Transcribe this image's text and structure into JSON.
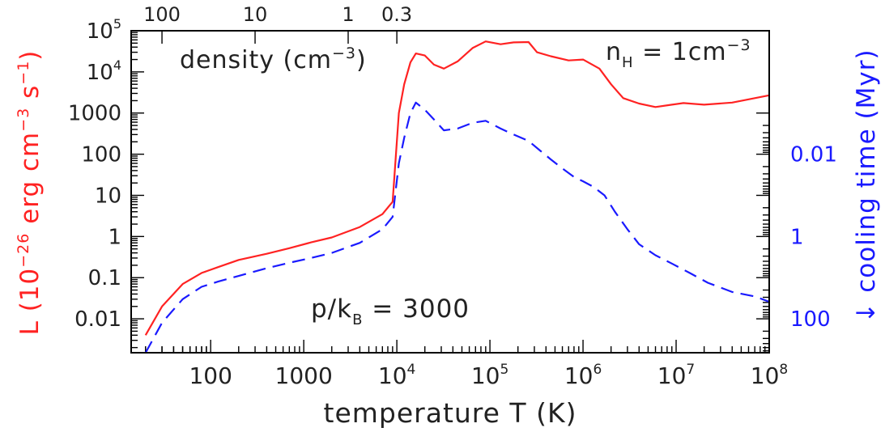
{
  "chart_data": {
    "type": "line",
    "title": "",
    "xlabel": "temperature T (K)",
    "xscale": "log",
    "xlim": [
      14,
      100000000
    ],
    "x_tick_labels": [
      {
        "value": 100,
        "label": "100"
      },
      {
        "value": 1000,
        "label": "1000"
      },
      {
        "value": 10000,
        "label": "10",
        "sup": "4"
      },
      {
        "value": 100000,
        "label": "10",
        "sup": "5"
      },
      {
        "value": 1000000,
        "label": "10",
        "sup": "6"
      },
      {
        "value": 10000000,
        "label": "10",
        "sup": "7"
      },
      {
        "value": 100000000,
        "label": "10",
        "sup": "8"
      }
    ],
    "top_axis": {
      "label": "density (cm",
      "label_sup": "−3",
      "label_end": ")",
      "tick_labels": [
        {
          "temperature": 30,
          "label": "100"
        },
        {
          "temperature": 300,
          "label": "10"
        },
        {
          "temperature": 3000,
          "label": "1"
        },
        {
          "temperature": 10000,
          "label": "0.3"
        }
      ]
    },
    "ylabel_left": {
      "prefix": "L (10",
      "sup1": "−26",
      "middle": " erg cm",
      "sup2": "−3",
      "middle2": " s",
      "sup3": "−1",
      "suffix": ")"
    },
    "yscale_left": "log",
    "ylim_left": [
      0.0015,
      100000
    ],
    "y_tick_labels_left": [
      {
        "value": 100000,
        "label": "10",
        "sup": "5"
      },
      {
        "value": 10000,
        "label": "10",
        "sup": "4"
      },
      {
        "value": 1000,
        "label": "1000"
      },
      {
        "value": 100,
        "label": "100"
      },
      {
        "value": 10,
        "label": "10"
      },
      {
        "value": 1,
        "label": "1"
      },
      {
        "value": 0.1,
        "label": "0.1"
      },
      {
        "value": 0.01,
        "label": "0.01"
      }
    ],
    "ylabel_right": "↓ cooling time (Myr)",
    "yscale_right": "log (inverted)",
    "y_tick_labels_right": [
      {
        "value": 0.01,
        "label": "0.01"
      },
      {
        "value": 1,
        "label": "1"
      },
      {
        "value": 100,
        "label": "100"
      }
    ],
    "annotations": {
      "nH": {
        "text": "n",
        "sub": "H",
        "rest": " = 1cm",
        "sup": "−3"
      },
      "pk": {
        "text": "p/k",
        "sub": "B",
        "rest": " = 3000"
      }
    },
    "series": [
      {
        "axis": "left",
        "color": "#ff2222",
        "style": "solid",
        "points": [
          [
            20,
            0.004
          ],
          [
            30,
            0.02
          ],
          [
            50,
            0.07
          ],
          [
            80,
            0.13
          ],
          [
            120,
            0.18
          ],
          [
            200,
            0.27
          ],
          [
            400,
            0.38
          ],
          [
            700,
            0.52
          ],
          [
            1200,
            0.72
          ],
          [
            2000,
            0.95
          ],
          [
            4000,
            1.7
          ],
          [
            7000,
            3.5
          ],
          [
            9000,
            7
          ],
          [
            10500,
            1000
          ],
          [
            12000,
            5000
          ],
          [
            14000,
            17000
          ],
          [
            16000,
            28000
          ],
          [
            20000,
            25000
          ],
          [
            25000,
            15000
          ],
          [
            32000,
            12000
          ],
          [
            45000,
            18000
          ],
          [
            65000,
            38000
          ],
          [
            90000,
            55000
          ],
          [
            130000,
            47000
          ],
          [
            180000,
            52000
          ],
          [
            260000,
            53000
          ],
          [
            320000,
            30000
          ],
          [
            450000,
            24000
          ],
          [
            700000,
            19000
          ],
          [
            1000000,
            20000
          ],
          [
            1500000,
            12000
          ],
          [
            2000000,
            5000
          ],
          [
            2700000,
            2300
          ],
          [
            4000000,
            1700
          ],
          [
            6000000,
            1400
          ],
          [
            9000000,
            1600
          ],
          [
            12000000,
            1750
          ],
          [
            20000000,
            1600
          ],
          [
            40000000,
            1800
          ],
          [
            70000000,
            2300
          ],
          [
            100000000,
            2700
          ]
        ]
      },
      {
        "axis": "left",
        "color": "#1a1aff",
        "style": "dashed",
        "points": [
          [
            20,
            0.0015
          ],
          [
            30,
            0.008
          ],
          [
            50,
            0.03
          ],
          [
            80,
            0.06
          ],
          [
            120,
            0.08
          ],
          [
            200,
            0.11
          ],
          [
            400,
            0.17
          ],
          [
            700,
            0.23
          ],
          [
            1200,
            0.3
          ],
          [
            2000,
            0.4
          ],
          [
            4000,
            0.7
          ],
          [
            7000,
            1.5
          ],
          [
            9000,
            3
          ],
          [
            10500,
            60
          ],
          [
            12000,
            250
          ],
          [
            14000,
            1000
          ],
          [
            16000,
            1800
          ],
          [
            20000,
            1200
          ],
          [
            25000,
            700
          ],
          [
            32000,
            380
          ],
          [
            45000,
            420
          ],
          [
            65000,
            580
          ],
          [
            90000,
            650
          ],
          [
            130000,
            420
          ],
          [
            180000,
            300
          ],
          [
            260000,
            210
          ],
          [
            350000,
            120
          ],
          [
            450000,
            75
          ],
          [
            600000,
            45
          ],
          [
            800000,
            28
          ],
          [
            1000000,
            22
          ],
          [
            1300000,
            16
          ],
          [
            1700000,
            10
          ],
          [
            2200000,
            4
          ],
          [
            3000000,
            1.5
          ],
          [
            4000000,
            0.65
          ],
          [
            6000000,
            0.35
          ],
          [
            9000000,
            0.22
          ],
          [
            14000000,
            0.13
          ],
          [
            22000000,
            0.075
          ],
          [
            40000000,
            0.045
          ],
          [
            70000000,
            0.035
          ],
          [
            100000000,
            0.026
          ]
        ]
      }
    ]
  }
}
